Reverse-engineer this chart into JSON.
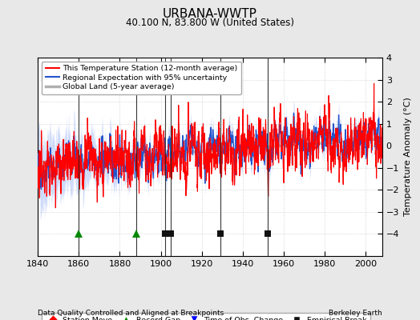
{
  "title": "URBANA-WWTP",
  "subtitle": "40.100 N, 83.800 W (United States)",
  "xlabel_left": "Data Quality Controlled and Aligned at Breakpoints",
  "xlabel_right": "Berkeley Earth",
  "ylabel": "Temperature Anomaly (°C)",
  "ylim": [
    -5,
    4
  ],
  "xlim": [
    1840,
    2008
  ],
  "yticks": [
    -4,
    -3,
    -2,
    -1,
    0,
    1,
    2,
    3,
    4
  ],
  "xticks": [
    1840,
    1860,
    1880,
    1900,
    1920,
    1940,
    1960,
    1980,
    2000
  ],
  "background_color": "#e8e8e8",
  "plot_bg_color": "#ffffff",
  "legend_items": [
    {
      "label": "This Temperature Station (12-month average)",
      "color": "#ff0000",
      "lw": 1.2
    },
    {
      "label": "Regional Expectation with 95% uncertainty",
      "color": "#3333cc",
      "lw": 1.2
    },
    {
      "label": "Global Land (5-year average)",
      "color": "#aaaaaa",
      "lw": 2.0
    }
  ],
  "marker_legend": [
    {
      "label": "Station Move",
      "marker": "D",
      "color": "#ff0000"
    },
    {
      "label": "Record Gap",
      "marker": "^",
      "color": "#008800"
    },
    {
      "label": "Time of Obs. Change",
      "marker": "v",
      "color": "#0000ff"
    },
    {
      "label": "Empirical Break",
      "marker": "s",
      "color": "#000000"
    }
  ],
  "record_gaps": [
    1860,
    1888
  ],
  "empirical_breaks": [
    1902,
    1905,
    1929,
    1952
  ],
  "vertical_lines": [
    1860,
    1888,
    1902,
    1905,
    1929,
    1952
  ],
  "seed": 42
}
